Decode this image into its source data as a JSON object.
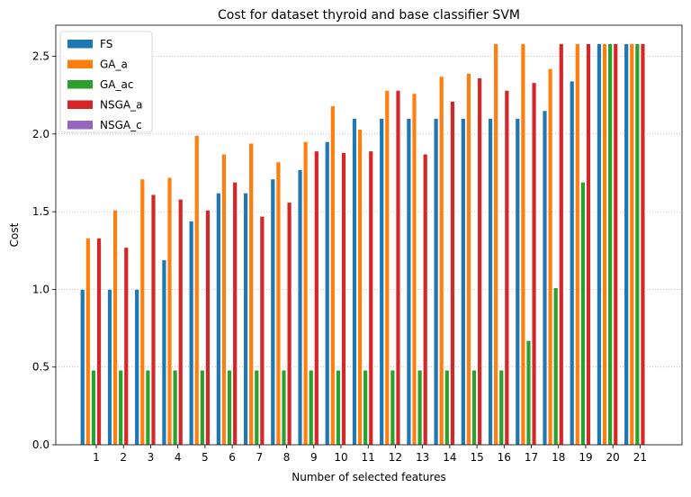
{
  "chart_data": {
    "type": "bar",
    "title": "Cost for dataset thyroid and base classifier SVM",
    "xlabel": "Number of selected features",
    "ylabel": "Cost",
    "ylim": [
      0,
      2.7
    ],
    "y_ticks": [
      "0.0",
      "0.5",
      "1.0",
      "1.5",
      "2.0",
      "2.5"
    ],
    "y_tick_values": [
      0,
      0.5,
      1.0,
      1.5,
      2.0,
      2.5
    ],
    "grid": "horizontal-dotted",
    "legend_position": "top-left",
    "categories": [
      "1",
      "2",
      "3",
      "4",
      "5",
      "6",
      "7",
      "8",
      "9",
      "10",
      "11",
      "12",
      "13",
      "14",
      "15",
      "16",
      "17",
      "18",
      "19",
      "20",
      "21"
    ],
    "series": [
      {
        "name": "FS",
        "color": "#1f77b4",
        "values": [
          1.0,
          1.0,
          1.0,
          1.19,
          1.44,
          1.62,
          1.62,
          1.71,
          1.77,
          1.95,
          2.1,
          2.1,
          2.1,
          2.1,
          2.1,
          2.1,
          2.1,
          2.15,
          2.34,
          2.58,
          2.58
        ]
      },
      {
        "name": "GA_a",
        "color": "#ff7f0e",
        "values": [
          1.33,
          1.51,
          1.71,
          1.72,
          1.99,
          1.87,
          1.94,
          1.82,
          1.95,
          2.18,
          2.03,
          2.28,
          2.26,
          2.37,
          2.39,
          2.58,
          2.58,
          2.42,
          2.58,
          2.58,
          2.58
        ]
      },
      {
        "name": "GA_ac",
        "color": "#2ca02c",
        "values": [
          0.48,
          0.48,
          0.48,
          0.48,
          0.48,
          0.48,
          0.48,
          0.48,
          0.48,
          0.48,
          0.48,
          0.48,
          0.48,
          0.48,
          0.48,
          0.48,
          0.67,
          1.01,
          1.69,
          2.58,
          2.58
        ]
      },
      {
        "name": "NSGA_a",
        "color": "#d62728",
        "values": [
          1.33,
          1.27,
          1.61,
          1.58,
          1.51,
          1.69,
          1.47,
          1.56,
          1.89,
          1.88,
          1.89,
          2.28,
          1.87,
          2.21,
          2.36,
          2.28,
          2.33,
          2.58,
          2.58,
          2.58,
          2.58
        ]
      },
      {
        "name": "NSGA_c",
        "color": "#9467bd",
        "values": [
          null,
          null,
          null,
          null,
          null,
          null,
          null,
          null,
          null,
          null,
          null,
          null,
          null,
          null,
          null,
          null,
          null,
          null,
          null,
          null,
          null
        ]
      }
    ]
  }
}
